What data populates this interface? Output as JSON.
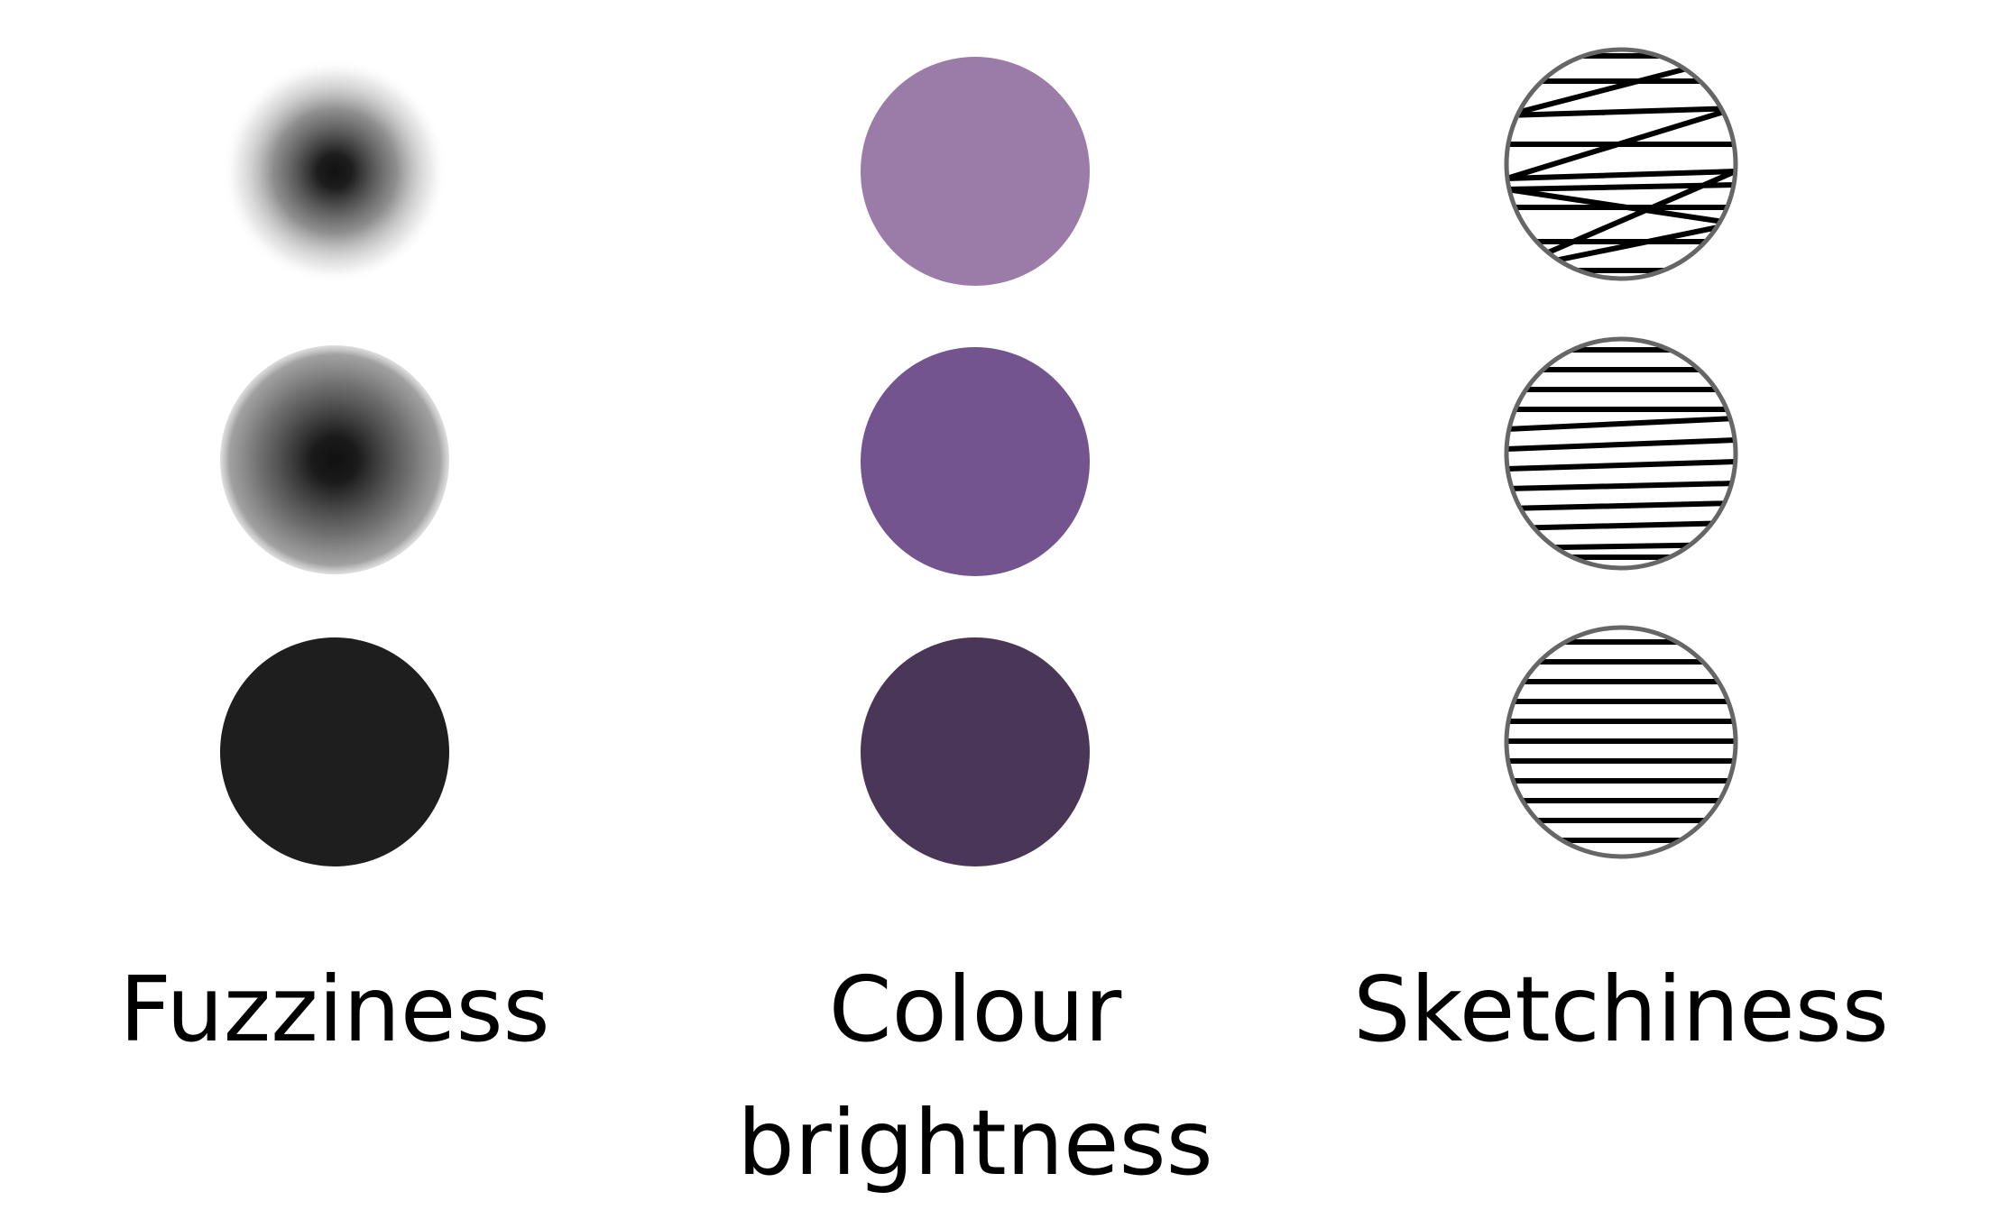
{
  "labels": {
    "fuzziness": "Fuzziness",
    "colour_line1": "Colour",
    "colour_line2": "brightness",
    "sketchiness": "Sketchiness"
  },
  "colors": {
    "fuzzy_core": "#111111",
    "solid_black": "#1e1e1e",
    "purple_light": "#9b7ba7",
    "purple_mid": "#73548f",
    "purple_dark": "#4a3657",
    "sketch_outline": "#666666",
    "hatch_line": "#000000"
  },
  "levels": {
    "fuzziness": [
      "high",
      "medium",
      "none"
    ],
    "colour_brightness": [
      "light",
      "medium",
      "dark"
    ],
    "sketchiness": [
      "high",
      "medium",
      "low"
    ]
  }
}
